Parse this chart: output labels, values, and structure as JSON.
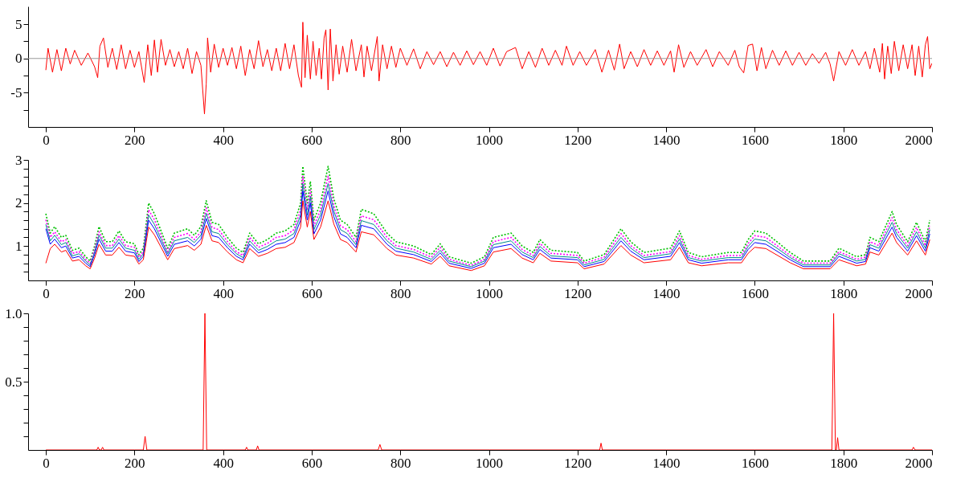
{
  "chart_data": [
    {
      "type": "line",
      "xlim": [
        -40,
        2000
      ],
      "ylim": [
        -10,
        7.6
      ],
      "xticks": [
        0,
        200,
        400,
        600,
        800,
        1000,
        1200,
        1400,
        1600,
        1800,
        2000
      ],
      "yticks": [
        {
          "value": -7.5,
          "label": null
        },
        -5,
        {
          "value": -2.5,
          "label": null
        },
        0,
        {
          "value": 2.5,
          "label": null
        },
        5
      ],
      "grid": false,
      "ref_lines": [
        {
          "axis": "y",
          "value": 0,
          "color": "#999999"
        }
      ],
      "series": [
        {
          "color": "#ff0000",
          "line_style": "solid",
          "x": [
            0,
            5,
            15,
            25,
            35,
            45,
            55,
            65,
            80,
            95,
            110,
            117,
            122,
            130,
            140,
            150,
            160,
            170,
            180,
            190,
            200,
            210,
            222,
            230,
            238,
            245,
            252,
            260,
            270,
            280,
            290,
            300,
            310,
            320,
            330,
            340,
            350,
            358,
            362,
            365,
            372,
            380,
            390,
            400,
            410,
            420,
            430,
            440,
            450,
            460,
            470,
            480,
            490,
            500,
            510,
            520,
            530,
            540,
            550,
            560,
            570,
            577,
            580,
            585,
            590,
            597,
            603,
            610,
            617,
            622,
            628,
            632,
            637,
            642,
            648,
            655,
            662,
            670,
            680,
            690,
            700,
            712,
            718,
            725,
            735,
            748,
            752,
            760,
            770,
            780,
            790,
            800,
            815,
            830,
            845,
            860,
            875,
            890,
            905,
            920,
            935,
            950,
            965,
            980,
            995,
            1010,
            1025,
            1040,
            1060,
            1075,
            1090,
            1105,
            1120,
            1135,
            1150,
            1165,
            1175,
            1190,
            1205,
            1220,
            1240,
            1255,
            1270,
            1283,
            1295,
            1305,
            1320,
            1335,
            1350,
            1365,
            1380,
            1395,
            1410,
            1418,
            1428,
            1440,
            1455,
            1470,
            1490,
            1505,
            1520,
            1540,
            1555,
            1565,
            1575,
            1585,
            1595,
            1605,
            1615,
            1625,
            1640,
            1655,
            1670,
            1685,
            1700,
            1715,
            1730,
            1745,
            1760,
            1770,
            1778,
            1790,
            1805,
            1820,
            1835,
            1850,
            1860,
            1870,
            1882,
            1888,
            1893,
            1900,
            1908,
            1915,
            1925,
            1935,
            1945,
            1955,
            1962,
            1970,
            1978,
            1985,
            1990,
            1995,
            2000
          ],
          "values": [
            -1.7,
            1.5,
            -2.0,
            1.3,
            -1.8,
            1.5,
            -0.8,
            1.2,
            -1.0,
            0.8,
            -1.2,
            -2.8,
            1.8,
            3.0,
            -1.3,
            1.5,
            -1.6,
            2.0,
            -1.5,
            1.2,
            -1.3,
            1.0,
            -3.5,
            2.0,
            -2.5,
            2.7,
            -2.0,
            2.8,
            -1.0,
            1.3,
            -1.2,
            1.0,
            -1.5,
            1.5,
            -2.2,
            1.0,
            -1.0,
            -8.1,
            -3.7,
            3.0,
            -2.0,
            2.1,
            -1.3,
            1.5,
            -1.0,
            1.6,
            -1.5,
            1.8,
            -2.5,
            1.3,
            -1.5,
            2.6,
            -1.2,
            1.3,
            -1.8,
            1.5,
            -1.8,
            2.2,
            -1.5,
            2.0,
            -2.5,
            -4.2,
            5.3,
            -2.8,
            3.4,
            -3.0,
            2.5,
            -2.5,
            1.5,
            -3.0,
            3.0,
            4.2,
            -4.6,
            4.3,
            -3.3,
            2.0,
            -2.3,
            1.8,
            -2.0,
            2.8,
            -1.8,
            2.0,
            -2.7,
            1.8,
            -1.8,
            3.2,
            -3.3,
            2.0,
            -1.5,
            1.8,
            -1.3,
            1.5,
            -1.0,
            1.4,
            -1.5,
            1.0,
            -0.9,
            1.0,
            -1.2,
            0.9,
            -1.0,
            1.1,
            -0.9,
            1.0,
            -1.0,
            1.5,
            -1.1,
            1.0,
            1.6,
            -1.5,
            1.0,
            -1.3,
            1.5,
            -1.0,
            1.2,
            -1.0,
            1.8,
            -1.0,
            1.0,
            -1.0,
            1.3,
            -2.0,
            1.2,
            -1.7,
            2.1,
            -1.5,
            1.0,
            -1.2,
            1.3,
            -1.0,
            1.1,
            -1.0,
            1.1,
            -2.0,
            2.0,
            -1.3,
            1.0,
            -1.0,
            1.3,
            -1.2,
            1.0,
            -1.0,
            1.2,
            -1.2,
            -2.1,
            1.9,
            2.1,
            -1.8,
            1.6,
            -1.5,
            1.2,
            -1.0,
            1.1,
            -1.0,
            0.9,
            -1.0,
            0.7,
            -0.7,
            0.9,
            -0.8,
            -3.3,
            1.0,
            -1.0,
            1.3,
            -1.0,
            1.0,
            -1.5,
            1.5,
            -2.0,
            2.2,
            -3.0,
            1.8,
            -2.2,
            2.5,
            -1.8,
            2.0,
            -1.5,
            2.0,
            -2.5,
            1.8,
            -2.7,
            2.0,
            3.2,
            -1.5,
            -0.7
          ]
        }
      ]
    },
    {
      "type": "line",
      "xlim": [
        -40,
        2000
      ],
      "ylim": [
        0.2,
        3.0
      ],
      "xticks": [
        0,
        200,
        400,
        600,
        800,
        1000,
        1200,
        1400,
        1600,
        1800,
        2000
      ],
      "yticks": [
        {
          "value": 0.4,
          "label": null
        },
        {
          "value": 0.6,
          "label": null
        },
        {
          "value": 0.8,
          "label": null
        },
        1,
        {
          "value": 1.2,
          "label": null
        },
        {
          "value": 1.4,
          "label": null
        },
        {
          "value": 1.6,
          "label": null
        },
        {
          "value": 1.8,
          "label": null
        },
        2,
        {
          "value": 2.2,
          "label": null
        },
        {
          "value": 2.4,
          "label": null
        },
        {
          "value": 2.6,
          "label": null
        },
        {
          "value": 2.8,
          "label": null
        },
        3
      ],
      "grid": false,
      "x": [
        0,
        10,
        20,
        35,
        45,
        60,
        75,
        90,
        100,
        110,
        120,
        135,
        150,
        165,
        180,
        200,
        210,
        220,
        232,
        245,
        260,
        275,
        290,
        320,
        335,
        350,
        362,
        375,
        390,
        410,
        430,
        445,
        460,
        480,
        500,
        520,
        540,
        560,
        575,
        580,
        590,
        597,
        605,
        620,
        637,
        650,
        665,
        680,
        700,
        712,
        740,
        770,
        790,
        830,
        870,
        890,
        910,
        960,
        990,
        1010,
        1050,
        1075,
        1100,
        1115,
        1140,
        1200,
        1215,
        1260,
        1298,
        1320,
        1350,
        1410,
        1430,
        1450,
        1480,
        1540,
        1570,
        1585,
        1600,
        1625,
        1650,
        1680,
        1710,
        1770,
        1790,
        1830,
        1850,
        1860,
        1880,
        1910,
        1920,
        1945,
        1965,
        1985,
        1995
      ],
      "series": [
        {
          "color": "#00c000",
          "line_style": "dotted",
          "values": [
            1.75,
            1.3,
            1.45,
            1.2,
            1.25,
            0.9,
            0.95,
            0.75,
            0.65,
            1.0,
            1.45,
            1.1,
            1.1,
            1.35,
            1.1,
            1.05,
            0.8,
            0.95,
            2.0,
            1.75,
            1.35,
            0.95,
            1.3,
            1.4,
            1.25,
            1.45,
            2.05,
            1.55,
            1.5,
            1.2,
            0.95,
            0.85,
            1.3,
            1.05,
            1.15,
            1.3,
            1.35,
            1.5,
            2.0,
            2.85,
            2.0,
            2.5,
            1.6,
            2.0,
            2.85,
            2.1,
            1.6,
            1.5,
            1.2,
            1.85,
            1.75,
            1.3,
            1.1,
            1.0,
            0.8,
            1.05,
            0.75,
            0.6,
            0.75,
            1.2,
            1.3,
            1.0,
            0.85,
            1.15,
            0.9,
            0.85,
            0.65,
            0.8,
            1.4,
            1.1,
            0.85,
            0.95,
            1.35,
            0.85,
            0.75,
            0.85,
            0.85,
            1.15,
            1.35,
            1.3,
            1.1,
            0.85,
            0.65,
            0.65,
            0.95,
            0.75,
            0.8,
            1.2,
            1.1,
            1.8,
            1.5,
            1.1,
            1.55,
            1.1,
            1.6
          ]
        },
        {
          "color": "#ff00ff",
          "line_style": "dotted",
          "values": [
            1.61,
            1.2,
            1.33,
            1.1,
            1.15,
            0.83,
            0.87,
            0.69,
            0.6,
            0.92,
            1.33,
            1.01,
            1.01,
            1.24,
            1.01,
            0.97,
            0.74,
            0.87,
            1.84,
            1.61,
            1.24,
            0.87,
            1.2,
            1.29,
            1.15,
            1.33,
            1.89,
            1.43,
            1.38,
            1.1,
            0.87,
            0.78,
            1.2,
            0.97,
            1.06,
            1.2,
            1.24,
            1.38,
            1.84,
            2.62,
            1.84,
            2.3,
            1.47,
            1.84,
            2.62,
            1.93,
            1.47,
            1.38,
            1.1,
            1.7,
            1.61,
            1.2,
            1.01,
            0.92,
            0.74,
            0.97,
            0.69,
            0.55,
            0.69,
            1.1,
            1.2,
            0.92,
            0.78,
            1.06,
            0.83,
            0.78,
            0.6,
            0.74,
            1.29,
            1.01,
            0.78,
            0.87,
            1.24,
            0.78,
            0.69,
            0.78,
            0.78,
            1.06,
            1.24,
            1.2,
            1.01,
            0.78,
            0.6,
            0.6,
            0.87,
            0.69,
            0.74,
            1.1,
            1.01,
            1.66,
            1.38,
            1.01,
            1.43,
            1.01,
            1.47
          ]
        },
        {
          "color": "#008b8b",
          "line_style": "solid",
          "values": [
            1.5,
            1.12,
            1.25,
            1.03,
            1.08,
            0.77,
            0.82,
            0.65,
            0.56,
            0.86,
            1.25,
            0.95,
            0.95,
            1.16,
            0.95,
            0.9,
            0.69,
            0.82,
            1.72,
            1.5,
            1.16,
            0.82,
            1.12,
            1.2,
            1.08,
            1.25,
            1.76,
            1.33,
            1.29,
            1.03,
            0.82,
            0.73,
            1.12,
            0.9,
            0.99,
            1.12,
            1.16,
            1.29,
            1.72,
            2.45,
            1.72,
            2.15,
            1.38,
            1.72,
            2.45,
            1.81,
            1.38,
            1.29,
            1.03,
            1.59,
            1.5,
            1.12,
            0.95,
            0.86,
            0.69,
            0.9,
            0.65,
            0.52,
            0.65,
            1.03,
            1.12,
            0.86,
            0.73,
            0.99,
            0.77,
            0.73,
            0.56,
            0.69,
            1.2,
            0.95,
            0.73,
            0.82,
            1.16,
            0.73,
            0.65,
            0.73,
            0.73,
            0.99,
            1.16,
            1.12,
            0.95,
            0.73,
            0.56,
            0.56,
            0.82,
            0.65,
            0.69,
            1.03,
            0.95,
            1.55,
            1.29,
            0.95,
            1.33,
            0.95,
            1.38
          ]
        },
        {
          "color": "#0000ff",
          "line_style": "solid",
          "values": [
            1.4,
            1.04,
            1.16,
            0.96,
            1.0,
            0.72,
            0.76,
            0.6,
            0.52,
            0.8,
            1.16,
            0.88,
            0.88,
            1.08,
            0.88,
            0.84,
            0.64,
            0.76,
            1.6,
            1.4,
            1.08,
            0.76,
            1.04,
            1.12,
            1.0,
            1.16,
            1.64,
            1.24,
            1.2,
            0.96,
            0.76,
            0.68,
            1.04,
            0.84,
            0.92,
            1.04,
            1.08,
            1.2,
            1.6,
            2.28,
            1.6,
            2.0,
            1.28,
            1.6,
            2.28,
            1.68,
            1.28,
            1.2,
            0.96,
            1.48,
            1.4,
            1.04,
            0.88,
            0.8,
            0.64,
            0.84,
            0.6,
            0.48,
            0.6,
            0.96,
            1.04,
            0.8,
            0.68,
            0.92,
            0.72,
            0.68,
            0.52,
            0.64,
            1.12,
            0.88,
            0.68,
            0.76,
            1.08,
            0.68,
            0.6,
            0.68,
            0.68,
            0.92,
            1.08,
            1.04,
            0.88,
            0.68,
            0.52,
            0.52,
            0.76,
            0.6,
            0.64,
            0.96,
            0.88,
            1.44,
            1.2,
            0.88,
            1.24,
            0.88,
            1.28
          ]
        },
        {
          "color": "#ff0000",
          "line_style": "solid",
          "values": [
            0.6,
            0.94,
            1.04,
            0.86,
            0.9,
            0.65,
            0.68,
            0.54,
            0.47,
            0.72,
            1.04,
            0.79,
            0.79,
            0.97,
            0.79,
            0.76,
            0.58,
            0.68,
            1.44,
            1.26,
            0.97,
            0.68,
            0.94,
            1.01,
            0.9,
            1.04,
            1.48,
            1.12,
            1.08,
            0.86,
            0.68,
            0.61,
            0.94,
            0.76,
            0.83,
            0.94,
            0.97,
            1.08,
            1.44,
            2.05,
            1.44,
            1.8,
            1.15,
            1.44,
            2.05,
            1.51,
            1.15,
            1.08,
            0.86,
            1.33,
            1.26,
            0.94,
            0.79,
            0.72,
            0.58,
            0.76,
            0.54,
            0.43,
            0.54,
            0.86,
            0.94,
            0.72,
            0.61,
            0.83,
            0.65,
            0.61,
            0.47,
            0.58,
            1.01,
            0.79,
            0.61,
            0.68,
            0.97,
            0.61,
            0.54,
            0.61,
            0.61,
            0.83,
            0.97,
            0.94,
            0.79,
            0.61,
            0.47,
            0.47,
            0.68,
            0.54,
            0.58,
            0.86,
            0.79,
            1.3,
            1.08,
            0.79,
            1.12,
            0.79,
            1.15
          ]
        }
      ]
    },
    {
      "type": "line",
      "xlim": [
        -40,
        2000
      ],
      "ylim": [
        0,
        1.0
      ],
      "xticks": [
        0,
        200,
        400,
        600,
        800,
        1000,
        1200,
        1400,
        1600,
        1800,
        2000
      ],
      "yticks": [
        {
          "value": 0.1,
          "label": null
        },
        {
          "value": 0.2,
          "label": null
        },
        {
          "value": 0.3,
          "label": null
        },
        {
          "value": 0.4,
          "label": null
        },
        0.5,
        {
          "value": 0.6,
          "label": null
        },
        {
          "value": 0.7,
          "label": null
        },
        {
          "value": 0.8,
          "label": null
        },
        {
          "value": 0.9,
          "label": null
        },
        {
          "value": 1.0,
          "label": "1.0"
        }
      ],
      "grid": false,
      "series": [
        {
          "color": "#ff0000",
          "line_style": "solid",
          "x": [
            0,
            115,
            118,
            121,
            125,
            128,
            131,
            220,
            224,
            228,
            355,
            359,
            363,
            450,
            453,
            456,
            475,
            478,
            481,
            750,
            754,
            758,
            1250,
            1253,
            1256,
            1774,
            1778,
            1782,
            1784,
            1787,
            1790,
            1955,
            1958,
            1962,
            2000
          ],
          "values": [
            0,
            0,
            0.02,
            0,
            0,
            0.02,
            0,
            0,
            0.1,
            0,
            0,
            1.0,
            0,
            0,
            0.02,
            0,
            0,
            0.03,
            0,
            0,
            0.04,
            0,
            0,
            0.05,
            0,
            0,
            1.0,
            0,
            0,
            0.09,
            0,
            0,
            0.02,
            0,
            0
          ]
        }
      ]
    }
  ]
}
